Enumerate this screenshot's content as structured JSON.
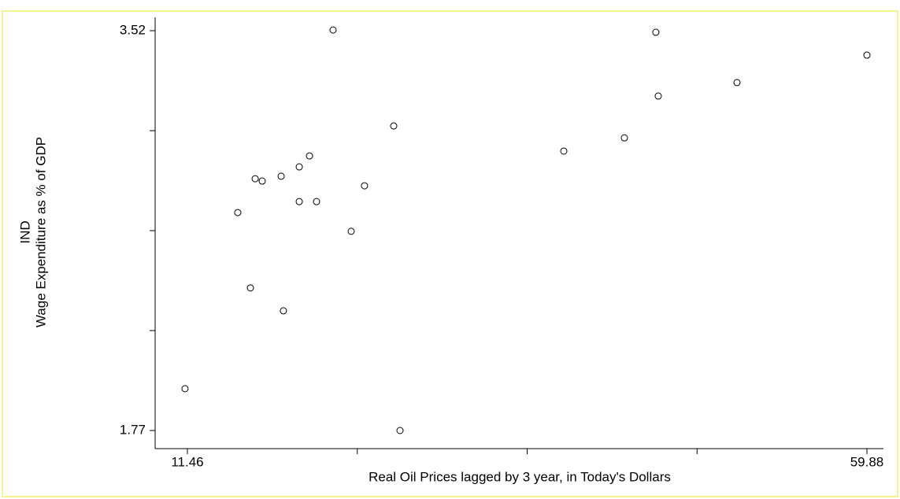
{
  "chart_data": {
    "type": "scatter",
    "ylabel_lines": [
      "IND",
      "Wage Expenditure as % of GDP"
    ],
    "xlabel": "Real Oil Prices lagged by 3 year, in Today's Dollars",
    "x": [
      11.29,
      21.84,
      44.84,
      59.88,
      50.62,
      45.01,
      26.16,
      42.6,
      38.28,
      20.16,
      19.43,
      18.14,
      16.29,
      16.79,
      24.08,
      19.43,
      20.66,
      15.05,
      23.13,
      15.95,
      18.3,
      26.61
    ],
    "values": [
      1.953,
      3.523,
      3.513,
      3.413,
      3.293,
      3.234,
      3.103,
      3.051,
      2.993,
      2.972,
      2.924,
      2.883,
      2.872,
      2.862,
      2.841,
      2.772,
      2.772,
      2.724,
      2.642,
      2.394,
      2.294,
      1.77
    ],
    "color": "#000000",
    "xlim": [
      11.46,
      59.88
    ],
    "ylim": [
      1.77,
      3.52
    ],
    "xticks": [
      11.46,
      {
        "value": 23.565,
        "label": null
      },
      {
        "value": 35.67,
        "label": null
      },
      {
        "value": 47.775,
        "label": null
      },
      59.88
    ],
    "yticks": [
      1.77,
      {
        "value": 2.2075,
        "label": null
      },
      {
        "value": 2.645,
        "label": null
      },
      {
        "value": 3.0825,
        "label": null
      },
      3.52
    ]
  }
}
